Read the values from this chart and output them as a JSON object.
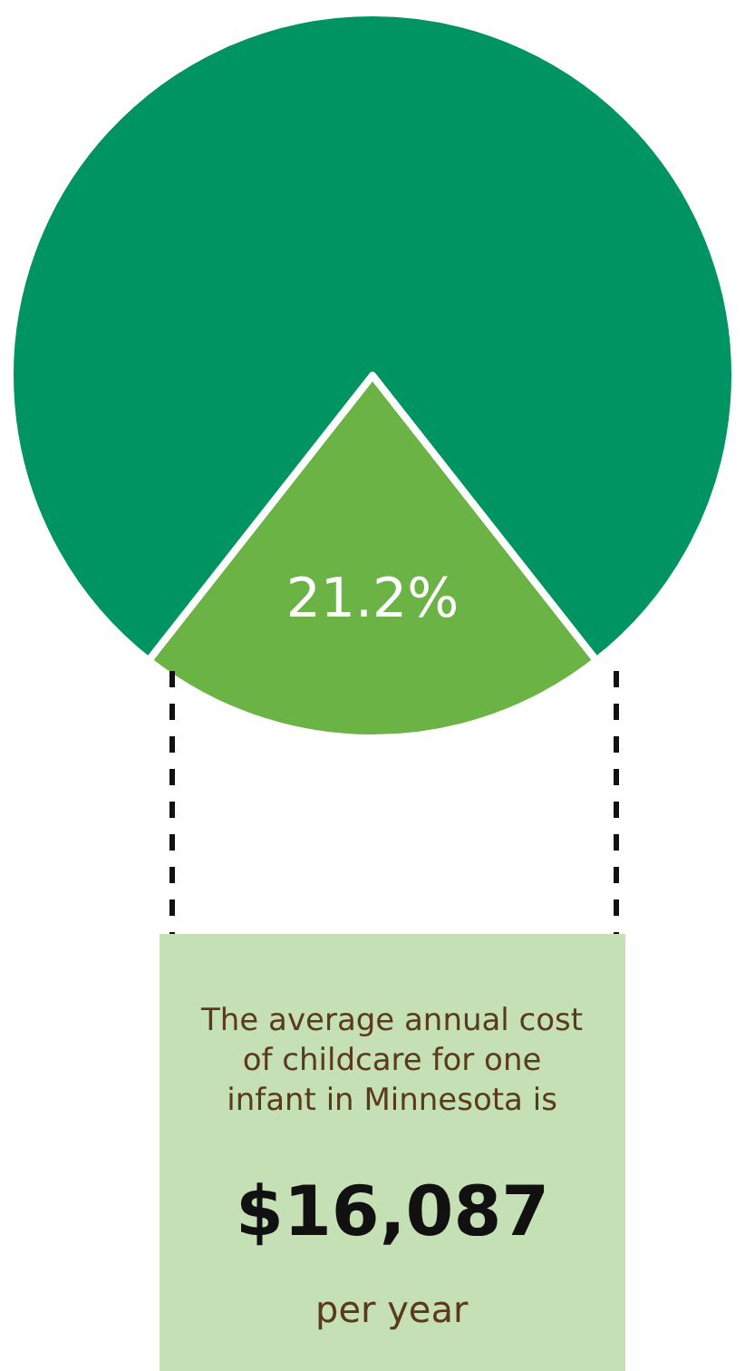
{
  "chart_data": {
    "type": "pie",
    "categories": [
      null,
      null
    ],
    "values": [
      21.2,
      78.8
    ],
    "colors": [
      "#6ab344",
      "#009462"
    ],
    "value_labels": [
      "21.2%",
      null
    ],
    "annotations": [
      "The average annual cost of childcare for one infant in Minnesota is",
      "$16,087",
      "per year"
    ],
    "legend": false
  }
}
